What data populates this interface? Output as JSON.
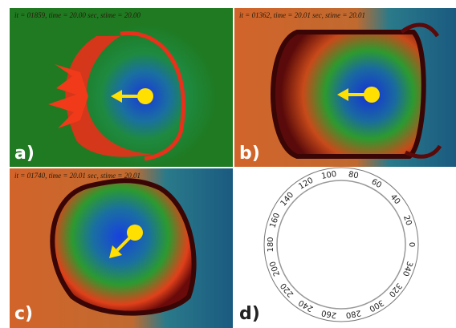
{
  "panels": [
    {
      "header": "it = 01859, time = 20.00 sec, stime = 20.00",
      "label": "a)"
    },
    {
      "header": "it = 01362, time = 20.01 sec, stime = 20.01",
      "label": "b)"
    },
    {
      "header": "it = 01740, time = 20.01 sec, stime = 20.01",
      "label": "c)"
    },
    {
      "label": "d)"
    }
  ],
  "dial": {
    "labels": [
      0,
      20,
      40,
      60,
      80,
      100,
      120,
      140,
      160,
      180,
      200,
      220,
      240,
      260,
      280,
      300,
      320,
      340
    ]
  }
}
